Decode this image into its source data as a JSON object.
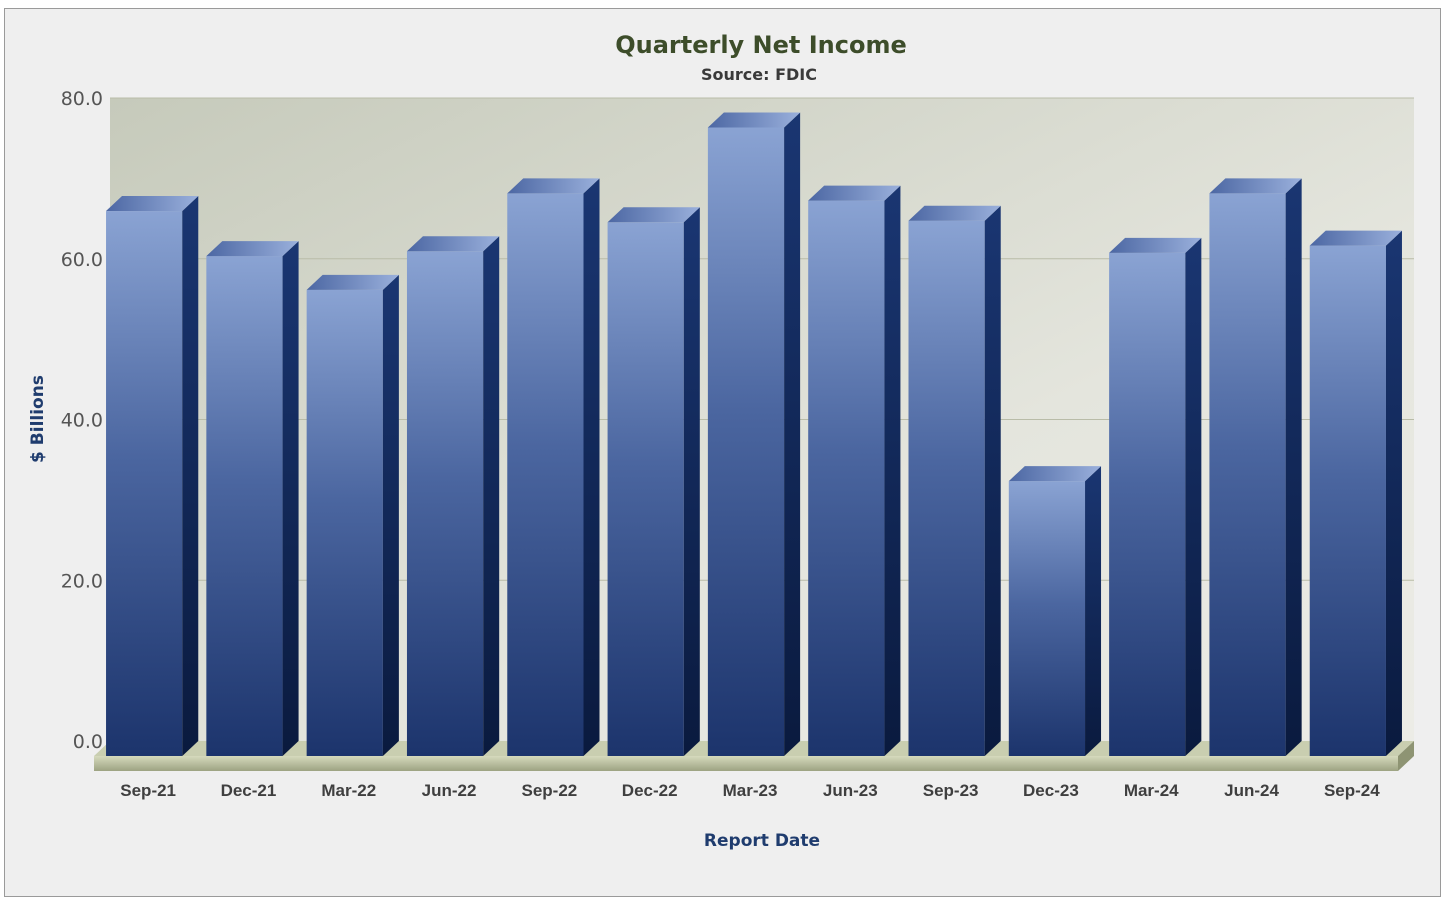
{
  "chart_data": {
    "type": "bar",
    "title": "Quarterly Net Income",
    "subtitle": "Source: FDIC",
    "xlabel": "Report Date",
    "ylabel": "$ Billions",
    "categories": [
      "Sep-21",
      "Dec-21",
      "Mar-22",
      "Jun-22",
      "Sep-22",
      "Dec-22",
      "Mar-23",
      "Jun-23",
      "Sep-23",
      "Dec-23",
      "Mar-24",
      "Jun-24",
      "Sep-24"
    ],
    "values": [
      67.8,
      62.2,
      58.0,
      62.8,
      70.0,
      66.4,
      78.2,
      69.1,
      66.6,
      34.2,
      62.6,
      70.0,
      63.5
    ],
    "ylim": [
      0,
      80
    ],
    "yticks": [
      "0.0",
      "20.0",
      "40.0",
      "60.0",
      "80.0"
    ],
    "grid": true,
    "legend": "none",
    "colors": {
      "bar_front_top": "#8aa3d3",
      "bar_front_bottom": "#1c346c",
      "bar_side": "#0f2452",
      "bar_top": "#6f89c0",
      "plot_bg": "#d3d6cb",
      "floor": "#bfc4a6",
      "title": "#3d4d2a",
      "axis_label": "#1f3c6e"
    }
  }
}
